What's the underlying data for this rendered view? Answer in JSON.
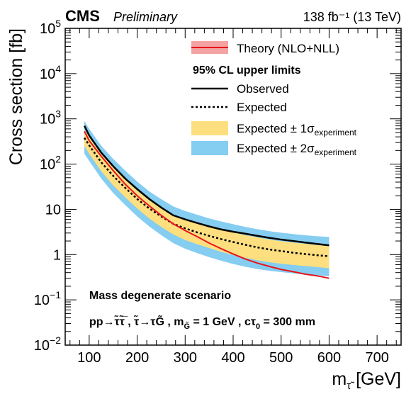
{
  "header": {
    "experiment": "CMS",
    "status": "Preliminary",
    "lumi": "138 fb⁻¹ (13 TeV)"
  },
  "legend": {
    "theory": "Theory (NLO+NLL)",
    "header": "95% CL upper limits",
    "observed": "Observed",
    "expected": "Expected",
    "band1_prefix": "Expected ± 1σ",
    "band1_sub": "experiment",
    "band2_prefix": "Expected ± 2σ",
    "band2_sub": "experiment"
  },
  "annotations": {
    "scenario": "Mass degenerate scenario",
    "process": "pp→τ̃τ̃̅ ,  τ̃→τG̃ , m",
    "process_sub": "G̃",
    "process_tail": " = 1 GeV , cτ",
    "process_sub2": "0",
    "process_tail2": " = 300 mm"
  },
  "colors": {
    "theory_line": "#e8141c",
    "theory_band": "#f4a3a3",
    "band1": "#fddf80",
    "band2": "#85cdf1",
    "observed": "#000000",
    "expected": "#000000"
  },
  "chart_data": {
    "type": "line",
    "title": "",
    "xlabel": "m",
    "xlabel_sub": "τ̃",
    "xlabel_unit": " [GeV]",
    "ylabel": "Cross section [fb]",
    "xlim": [
      50,
      750
    ],
    "ylim": [
      0.01,
      100000
    ],
    "yscale": "log",
    "xticks": [
      100,
      200,
      300,
      400,
      500,
      600,
      700
    ],
    "xtick_labels": [
      "100",
      "200",
      "300",
      "400",
      "500",
      "600",
      "700"
    ],
    "yticks": [
      0.01,
      0.1,
      1,
      10,
      100,
      1000,
      10000,
      100000
    ],
    "ytick_labels": [
      {
        "base": "10",
        "exp": "−2"
      },
      {
        "base": "10",
        "exp": "−1"
      },
      {
        "base": "1",
        "exp": ""
      },
      {
        "base": "10",
        "exp": ""
      },
      {
        "base": "10",
        "exp": "2"
      },
      {
        "base": "10",
        "exp": "3"
      },
      {
        "base": "10",
        "exp": "4"
      },
      {
        "base": "10",
        "exp": "5"
      }
    ],
    "x": [
      90,
      100,
      125,
      150,
      175,
      200,
      225,
      250,
      275,
      300,
      325,
      350,
      375,
      400,
      425,
      450,
      475,
      500,
      525,
      550,
      575,
      600
    ],
    "series": [
      {
        "name": "Observed",
        "values": [
          700,
          430,
          180,
          90,
          48,
          28,
          17,
          11,
          7.4,
          6.0,
          5.0,
          4.2,
          3.6,
          3.2,
          2.9,
          2.6,
          2.35,
          2.15,
          2.0,
          1.85,
          1.72,
          1.6
        ]
      },
      {
        "name": "Expected",
        "values": [
          380,
          260,
          110,
          55,
          30,
          17,
          10.5,
          7.0,
          4.8,
          3.8,
          3.1,
          2.6,
          2.2,
          1.9,
          1.65,
          1.45,
          1.3,
          1.2,
          1.1,
          1.03,
          0.97,
          0.92
        ]
      },
      {
        "name": "Theory (NLO+NLL)",
        "values": [
          530,
          330,
          150,
          72,
          36,
          20,
          12,
          7.4,
          4.8,
          3.4,
          2.5,
          1.8,
          1.35,
          1.03,
          0.8,
          0.65,
          0.55,
          0.47,
          0.42,
          0.37,
          0.34,
          0.3
        ]
      }
    ],
    "band1_low": [
      250,
      170,
      70,
      34,
      18.5,
      10.5,
      6.3,
      4.1,
      2.8,
      2.1,
      1.7,
      1.4,
      1.15,
      0.98,
      0.85,
      0.75,
      0.68,
      0.63,
      0.59,
      0.56,
      0.53,
      0.5
    ],
    "band1_high": [
      570,
      390,
      165,
      84,
      46,
      26,
      16,
      10.8,
      7.5,
      6.0,
      5.0,
      4.2,
      3.6,
      3.1,
      2.7,
      2.4,
      2.15,
      1.98,
      1.85,
      1.73,
      1.63,
      1.55
    ],
    "band2_low": [
      170,
      118,
      48,
      23,
      12.5,
      7.0,
      4.2,
      2.7,
      1.8,
      1.35,
      1.08,
      0.88,
      0.73,
      0.62,
      0.54,
      0.48,
      0.44,
      0.41,
      0.385,
      0.365,
      0.35,
      0.33
    ],
    "band2_high": [
      900,
      600,
      255,
      130,
      72,
      41,
      25,
      16.8,
      11.6,
      9.2,
      7.6,
      6.3,
      5.4,
      4.7,
      4.1,
      3.65,
      3.3,
      3.05,
      2.85,
      2.68,
      2.55,
      2.45
    ],
    "grid": false,
    "legend_position": "top-right"
  }
}
